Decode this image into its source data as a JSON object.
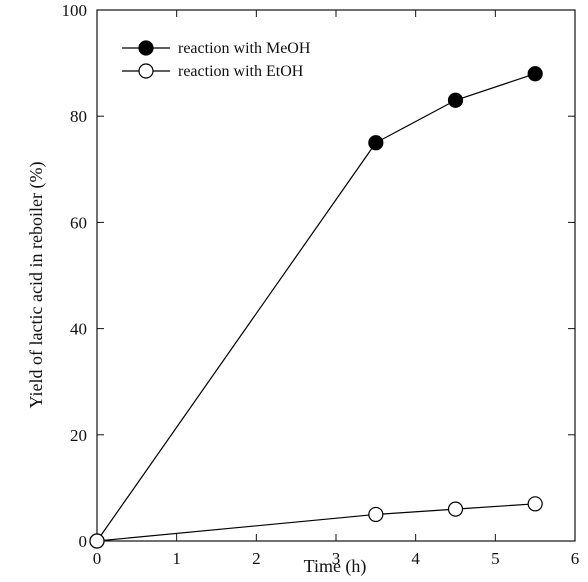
{
  "chart_data": {
    "type": "line",
    "title": "",
    "xlabel": "Time (h)",
    "ylabel": "Yield of lactic acid in reboiler (%)",
    "xlim": [
      0,
      6
    ],
    "ylim": [
      0,
      100
    ],
    "xticks": [
      "0",
      "1",
      "2",
      "3",
      "4",
      "5",
      "6"
    ],
    "yticks": [
      "0",
      "20",
      "40",
      "60",
      "80",
      "100"
    ],
    "grid": false,
    "legend_position": "top-left",
    "series": [
      {
        "name": "reaction with MeOH",
        "marker": "filled-circle",
        "color": "#000000",
        "x": [
          0,
          3.5,
          4.5,
          5.5
        ],
        "y": [
          0,
          75,
          83,
          88
        ]
      },
      {
        "name": "reaction with EtOH",
        "marker": "open-circle",
        "color": "#000000",
        "x": [
          0,
          3.5,
          4.5,
          5.5
        ],
        "y": [
          0,
          5,
          6,
          7
        ]
      }
    ]
  }
}
